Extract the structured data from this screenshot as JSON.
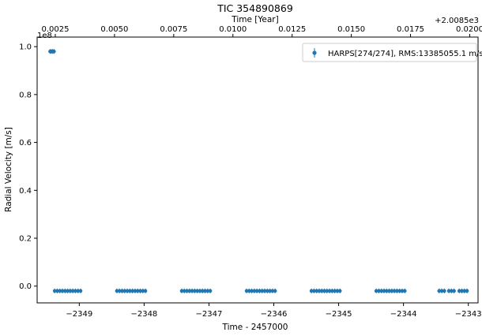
{
  "chart_data": {
    "type": "scatter",
    "title": "TIC 354890869",
    "xlabel": "Time - 2457000",
    "ylabel": "Radial Velocity [m/s]",
    "top_xlabel": "Time [Year]",
    "top_offset_text": "+2.0085e3",
    "y_offset_text": "1e8",
    "xlim": [
      -2349.65,
      -2342.85
    ],
    "ylim": [
      -0.07,
      1.04
    ],
    "y_scale": 100000000.0,
    "x_ticks": [
      -2349,
      -2348,
      -2347,
      -2346,
      -2345,
      -2344,
      -2343
    ],
    "x_tick_labels": [
      "−2349",
      "−2348",
      "−2347",
      "−2346",
      "−2345",
      "−2344",
      "−2343"
    ],
    "y_ticks": [
      0.0,
      0.2,
      0.4,
      0.6,
      0.8,
      1.0
    ],
    "y_tick_labels": [
      "0.0",
      "0.2",
      "0.4",
      "0.6",
      "0.8",
      "1.0"
    ],
    "top_x_ticks": [
      0.0025,
      0.005,
      0.0075,
      0.01,
      0.0125,
      0.015,
      0.0175,
      0.02
    ],
    "top_x_tick_labels": [
      "0.0025",
      "0.0050",
      "0.0075",
      "0.0100",
      "0.0125",
      "0.0150",
      "0.0175",
      "0.0200"
    ],
    "top_x_ref": {
      "x": -2349.0,
      "year_offset": 0.003513
    },
    "days_per_year": 365.25,
    "grid": false,
    "legend": {
      "placement": "top-right",
      "label": "HARPS[274/274], RMS:13385055.1 m/s"
    },
    "series": [
      {
        "name": "HARPS[274/274], RMS:13385055.1 m/s",
        "color": "#1f77b4",
        "points": [
          {
            "x": -2349.45,
            "y": 0.98
          },
          {
            "x": -2349.43,
            "y": 0.98
          },
          {
            "x": -2349.41,
            "y": 0.98
          },
          {
            "x": -2349.39,
            "y": 0.98
          },
          {
            "x": -2349.38,
            "y": -0.02
          },
          {
            "x": -2349.34,
            "y": -0.02
          },
          {
            "x": -2349.3,
            "y": -0.02
          },
          {
            "x": -2349.26,
            "y": -0.02
          },
          {
            "x": -2349.22,
            "y": -0.02
          },
          {
            "x": -2349.18,
            "y": -0.02
          },
          {
            "x": -2349.14,
            "y": -0.02
          },
          {
            "x": -2349.1,
            "y": -0.02
          },
          {
            "x": -2349.06,
            "y": -0.02
          },
          {
            "x": -2349.02,
            "y": -0.02
          },
          {
            "x": -2348.98,
            "y": -0.02
          },
          {
            "x": -2348.42,
            "y": -0.02
          },
          {
            "x": -2348.38,
            "y": -0.02
          },
          {
            "x": -2348.34,
            "y": -0.02
          },
          {
            "x": -2348.3,
            "y": -0.02
          },
          {
            "x": -2348.26,
            "y": -0.02
          },
          {
            "x": -2348.22,
            "y": -0.02
          },
          {
            "x": -2348.18,
            "y": -0.02
          },
          {
            "x": -2348.14,
            "y": -0.02
          },
          {
            "x": -2348.1,
            "y": -0.02
          },
          {
            "x": -2348.06,
            "y": -0.02
          },
          {
            "x": -2348.02,
            "y": -0.02
          },
          {
            "x": -2347.98,
            "y": -0.02
          },
          {
            "x": -2347.42,
            "y": -0.02
          },
          {
            "x": -2347.38,
            "y": -0.02
          },
          {
            "x": -2347.34,
            "y": -0.02
          },
          {
            "x": -2347.3,
            "y": -0.02
          },
          {
            "x": -2347.26,
            "y": -0.02
          },
          {
            "x": -2347.22,
            "y": -0.02
          },
          {
            "x": -2347.18,
            "y": -0.02
          },
          {
            "x": -2347.14,
            "y": -0.02
          },
          {
            "x": -2347.1,
            "y": -0.02
          },
          {
            "x": -2347.06,
            "y": -0.02
          },
          {
            "x": -2347.02,
            "y": -0.02
          },
          {
            "x": -2346.98,
            "y": -0.02
          },
          {
            "x": -2346.42,
            "y": -0.02
          },
          {
            "x": -2346.38,
            "y": -0.02
          },
          {
            "x": -2346.34,
            "y": -0.02
          },
          {
            "x": -2346.3,
            "y": -0.02
          },
          {
            "x": -2346.26,
            "y": -0.02
          },
          {
            "x": -2346.22,
            "y": -0.02
          },
          {
            "x": -2346.18,
            "y": -0.02
          },
          {
            "x": -2346.14,
            "y": -0.02
          },
          {
            "x": -2346.1,
            "y": -0.02
          },
          {
            "x": -2346.06,
            "y": -0.02
          },
          {
            "x": -2346.02,
            "y": -0.02
          },
          {
            "x": -2345.98,
            "y": -0.02
          },
          {
            "x": -2345.42,
            "y": -0.02
          },
          {
            "x": -2345.38,
            "y": -0.02
          },
          {
            "x": -2345.34,
            "y": -0.02
          },
          {
            "x": -2345.3,
            "y": -0.02
          },
          {
            "x": -2345.26,
            "y": -0.02
          },
          {
            "x": -2345.22,
            "y": -0.02
          },
          {
            "x": -2345.18,
            "y": -0.02
          },
          {
            "x": -2345.14,
            "y": -0.02
          },
          {
            "x": -2345.1,
            "y": -0.02
          },
          {
            "x": -2345.06,
            "y": -0.02
          },
          {
            "x": -2345.02,
            "y": -0.02
          },
          {
            "x": -2344.98,
            "y": -0.02
          },
          {
            "x": -2344.42,
            "y": -0.02
          },
          {
            "x": -2344.38,
            "y": -0.02
          },
          {
            "x": -2344.34,
            "y": -0.02
          },
          {
            "x": -2344.3,
            "y": -0.02
          },
          {
            "x": -2344.26,
            "y": -0.02
          },
          {
            "x": -2344.22,
            "y": -0.02
          },
          {
            "x": -2344.18,
            "y": -0.02
          },
          {
            "x": -2344.14,
            "y": -0.02
          },
          {
            "x": -2344.1,
            "y": -0.02
          },
          {
            "x": -2344.06,
            "y": -0.02
          },
          {
            "x": -2344.02,
            "y": -0.02
          },
          {
            "x": -2343.98,
            "y": -0.02
          },
          {
            "x": -2343.45,
            "y": -0.02
          },
          {
            "x": -2343.41,
            "y": -0.02
          },
          {
            "x": -2343.37,
            "y": -0.02
          },
          {
            "x": -2343.3,
            "y": -0.02
          },
          {
            "x": -2343.26,
            "y": -0.02
          },
          {
            "x": -2343.22,
            "y": -0.02
          },
          {
            "x": -2343.14,
            "y": -0.02
          },
          {
            "x": -2343.1,
            "y": -0.02
          },
          {
            "x": -2343.06,
            "y": -0.02
          },
          {
            "x": -2343.02,
            "y": -0.02
          }
        ]
      }
    ]
  }
}
